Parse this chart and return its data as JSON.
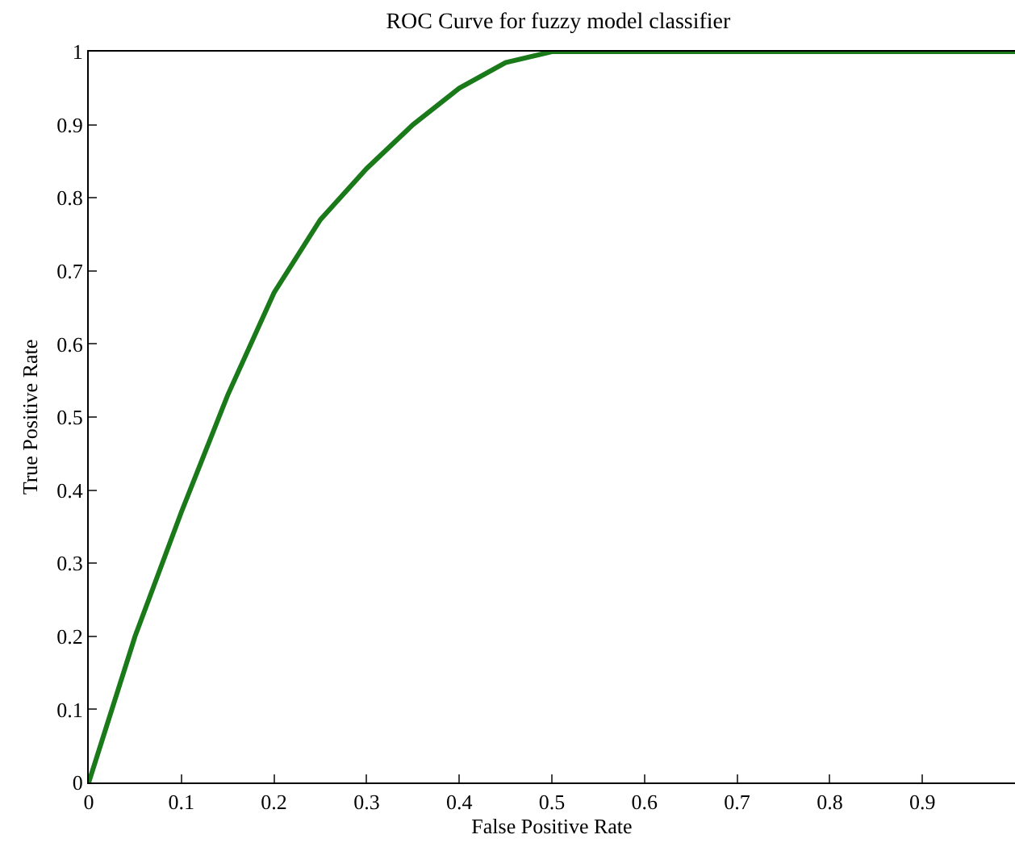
{
  "chart_data": {
    "type": "line",
    "title": "ROC Curve for fuzzy model classifier",
    "xlabel": "False Positive Rate",
    "ylabel": "True Positive Rate",
    "x": [
      0,
      0.02,
      0.05,
      0.1,
      0.15,
      0.2,
      0.25,
      0.3,
      0.35,
      0.4,
      0.45,
      0.5,
      0.6,
      0.8,
      1
    ],
    "series": [
      {
        "color": "#1a7a1a",
        "values": [
          0,
          0.08,
          0.2,
          0.37,
          0.53,
          0.67,
          0.77,
          0.84,
          0.9,
          0.95,
          0.985,
          1,
          1,
          1,
          1
        ]
      }
    ],
    "xlim": [
      0,
      1
    ],
    "xticks": [
      0,
      0.1,
      0.2,
      0.3,
      0.4,
      0.5,
      0.6,
      0.7,
      0.8,
      0.9
    ],
    "ylim": [
      0,
      1
    ],
    "yticks": [
      0,
      0.1,
      0.2,
      0.3,
      0.4,
      0.5,
      0.6,
      0.7,
      0.8,
      0.9,
      1
    ],
    "grid": false,
    "marker": "none",
    "line_style": "solid"
  }
}
